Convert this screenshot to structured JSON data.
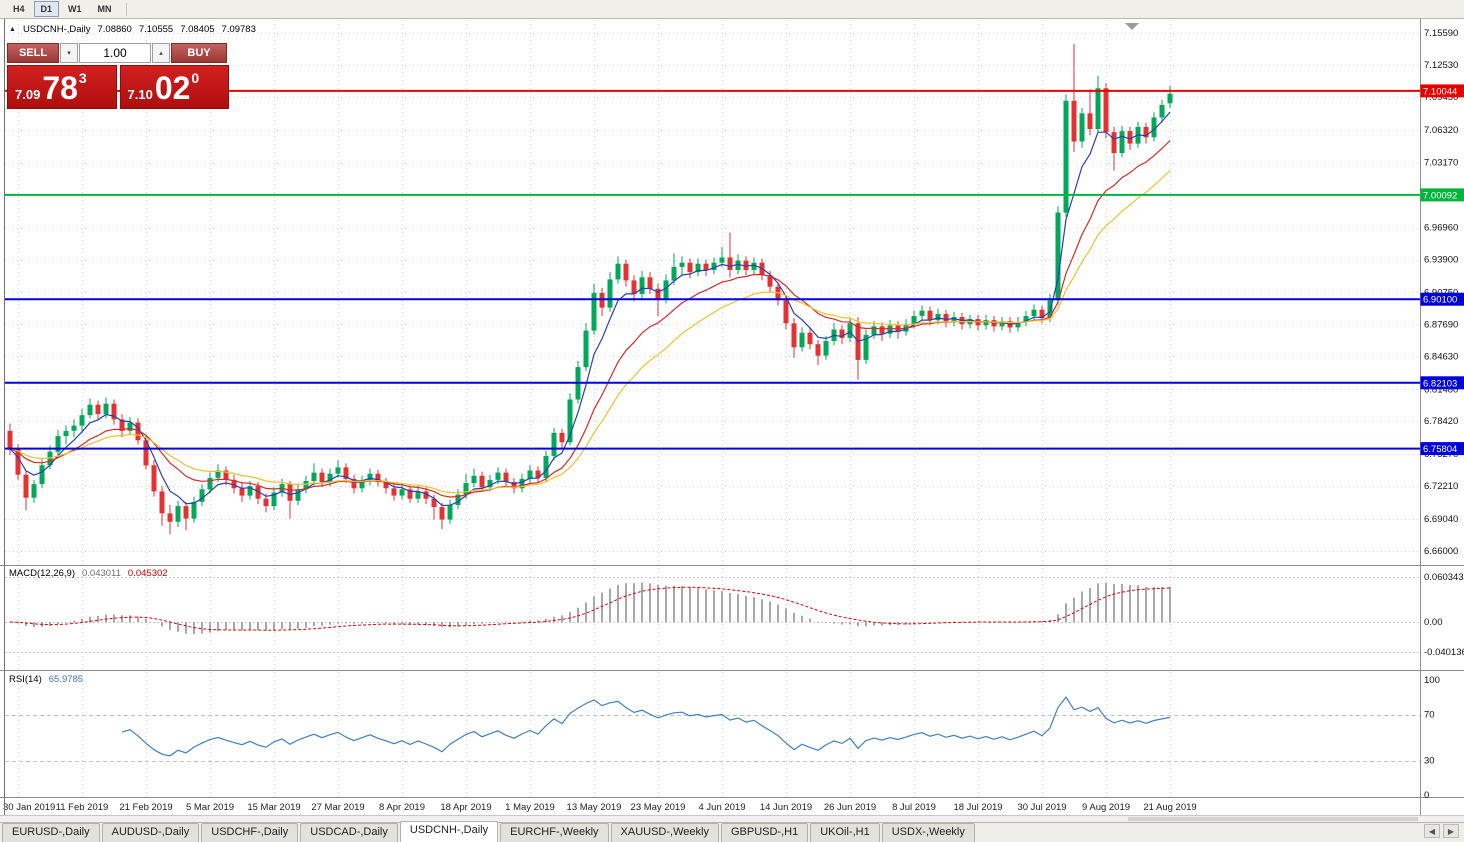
{
  "toolbar": {
    "timeframes": [
      {
        "label": "H4",
        "active": false
      },
      {
        "label": "D1",
        "active": true
      },
      {
        "label": "W1",
        "active": false
      },
      {
        "label": "MN",
        "active": false
      }
    ]
  },
  "chart": {
    "title_symbol": "USDCNH-,Daily",
    "ohlc": {
      "open": "7.08860",
      "high": "7.10555",
      "low": "7.08405",
      "close": "7.09783"
    },
    "trade_panel": {
      "sell_label": "SELL",
      "buy_label": "BUY",
      "volume": "1.00",
      "sell_price_prefix": "7.09",
      "sell_price_big": "78",
      "sell_price_sup": "3",
      "buy_price_prefix": "7.10",
      "buy_price_big": "02",
      "buy_price_sup": "0"
    },
    "price_axis": {
      "ticks": [
        "7.15590",
        "7.12530",
        "7.09450",
        "7.06320",
        "7.03170",
        "7.00090",
        "6.96960",
        "6.93900",
        "6.90750",
        "6.87690",
        "6.84630",
        "6.81480",
        "6.78420",
        "6.75270",
        "6.72210",
        "6.69040",
        "6.66000"
      ]
    },
    "levels": [
      {
        "label": "7.10044",
        "value": 7.10044,
        "color": "#E80000"
      },
      {
        "label": "7.00092",
        "value": 7.00092,
        "color": "#00B43C"
      },
      {
        "label": "6.90100",
        "value": 6.901,
        "color": "#0000DC"
      },
      {
        "label": "6.82103",
        "value": 6.82103,
        "color": "#0000DC"
      },
      {
        "label": "6.75804",
        "value": 6.75804,
        "color": "#0000DC"
      }
    ],
    "date_axis": [
      "30 Jan 2019",
      "11 Feb 2019",
      "21 Feb 2019",
      "5 Mar 2019",
      "15 Mar 2019",
      "27 Mar 2019",
      "8 Apr 2019",
      "18 Apr 2019",
      "1 May 2019",
      "13 May 2019",
      "23 May 2019",
      "4 Jun 2019",
      "14 Jun 2019",
      "26 Jun 2019",
      "8 Jul 2019",
      "18 Jul 2019",
      "30 Jul 2019",
      "9 Aug 2019",
      "21 Aug 2019"
    ],
    "colors": {
      "up": "#00A859",
      "down": "#E53131",
      "grid": "#D4D4D4",
      "macd_hist": "#A8A8A8",
      "macd_signal": "#E00000",
      "rsi_line": "#4080C0"
    }
  },
  "chart_data": {
    "type": "candlestick",
    "symbol": "USDCNH",
    "period": "Daily",
    "y_range": [
      6.66,
      7.1559
    ],
    "overlays": [
      {
        "name": "ma-fast-line",
        "period": 5,
        "color": "#2840B4"
      },
      {
        "name": "ma-mid-line",
        "period": 13,
        "color": "#D22B2B"
      },
      {
        "name": "ma-slow-line",
        "period": 21,
        "color": "#F0C030"
      }
    ],
    "candles": [
      [
        6.775,
        6.782,
        6.752,
        6.758
      ],
      [
        6.758,
        6.762,
        6.728,
        6.733
      ],
      [
        6.733,
        6.737,
        6.699,
        6.711
      ],
      [
        6.711,
        6.728,
        6.706,
        6.724
      ],
      [
        6.724,
        6.748,
        6.72,
        6.742
      ],
      [
        6.742,
        6.761,
        6.738,
        6.755
      ],
      [
        6.755,
        6.776,
        6.751,
        6.77
      ],
      [
        6.77,
        6.78,
        6.762,
        6.775
      ],
      [
        6.775,
        6.786,
        6.769,
        6.78
      ],
      [
        6.78,
        6.796,
        6.775,
        6.79
      ],
      [
        6.79,
        6.806,
        6.787,
        6.8
      ],
      [
        6.8,
        6.804,
        6.786,
        6.791
      ],
      [
        6.791,
        6.807,
        6.787,
        6.801
      ],
      [
        6.801,
        6.805,
        6.781,
        6.786
      ],
      [
        6.786,
        6.791,
        6.769,
        6.775
      ],
      [
        6.775,
        6.788,
        6.771,
        6.783
      ],
      [
        6.783,
        6.787,
        6.762,
        6.766
      ],
      [
        6.766,
        6.771,
        6.738,
        6.742
      ],
      [
        6.742,
        6.747,
        6.712,
        6.717
      ],
      [
        6.717,
        6.722,
        6.684,
        6.696
      ],
      [
        6.696,
        6.704,
        6.676,
        6.688
      ],
      [
        6.688,
        6.708,
        6.683,
        6.703
      ],
      [
        6.703,
        6.707,
        6.68,
        6.691
      ],
      [
        6.691,
        6.712,
        6.687,
        6.707
      ],
      [
        6.707,
        6.724,
        6.703,
        6.719
      ],
      [
        6.719,
        6.735,
        6.715,
        6.73
      ],
      [
        6.73,
        6.743,
        6.726,
        6.737
      ],
      [
        6.737,
        6.741,
        6.723,
        6.728
      ],
      [
        6.728,
        6.733,
        6.715,
        6.72
      ],
      [
        6.72,
        6.726,
        6.707,
        6.713
      ],
      [
        6.713,
        6.727,
        6.709,
        6.722
      ],
      [
        6.722,
        6.726,
        6.705,
        6.71
      ],
      [
        6.71,
        6.715,
        6.697,
        6.703
      ],
      [
        6.703,
        6.721,
        6.699,
        6.716
      ],
      [
        6.716,
        6.729,
        6.712,
        6.724
      ],
      [
        6.724,
        6.727,
        6.691,
        6.708
      ],
      [
        6.708,
        6.724,
        6.704,
        6.719
      ],
      [
        6.719,
        6.732,
        6.715,
        6.727
      ],
      [
        6.727,
        6.744,
        6.723,
        6.735
      ],
      [
        6.735,
        6.739,
        6.721,
        6.726
      ],
      [
        6.726,
        6.739,
        6.722,
        6.734
      ],
      [
        6.734,
        6.747,
        6.73,
        6.74
      ],
      [
        6.74,
        6.744,
        6.725,
        6.729
      ],
      [
        6.729,
        6.733,
        6.715,
        6.72
      ],
      [
        6.72,
        6.732,
        6.716,
        6.727
      ],
      [
        6.727,
        6.739,
        6.723,
        6.734
      ],
      [
        6.734,
        6.738,
        6.722,
        6.726
      ],
      [
        6.726,
        6.73,
        6.715,
        6.72
      ],
      [
        6.72,
        6.724,
        6.708,
        6.713
      ],
      [
        6.713,
        6.725,
        6.709,
        6.719
      ],
      [
        6.719,
        6.723,
        6.706,
        6.71
      ],
      [
        6.71,
        6.722,
        6.706,
        6.717
      ],
      [
        6.717,
        6.721,
        6.705,
        6.71
      ],
      [
        6.71,
        6.714,
        6.69,
        6.702
      ],
      [
        6.702,
        6.706,
        6.681,
        6.69
      ],
      [
        6.69,
        6.709,
        6.686,
        6.704
      ],
      [
        6.704,
        6.719,
        6.7,
        6.714
      ],
      [
        6.714,
        6.734,
        6.71,
        6.725
      ],
      [
        6.725,
        6.739,
        6.721,
        6.732
      ],
      [
        6.732,
        6.736,
        6.717,
        6.721
      ],
      [
        6.721,
        6.733,
        6.717,
        6.728
      ],
      [
        6.728,
        6.74,
        6.724,
        6.735
      ],
      [
        6.735,
        6.739,
        6.722,
        6.726
      ],
      [
        6.726,
        6.73,
        6.715,
        6.72
      ],
      [
        6.72,
        6.734,
        6.716,
        6.729
      ],
      [
        6.729,
        6.742,
        6.725,
        6.737
      ],
      [
        6.737,
        6.741,
        6.725,
        6.73
      ],
      [
        6.73,
        6.756,
        6.726,
        6.751
      ],
      [
        6.751,
        6.778,
        6.747,
        6.773
      ],
      [
        6.773,
        6.777,
        6.759,
        6.764
      ],
      [
        6.764,
        6.811,
        6.761,
        6.805
      ],
      [
        6.805,
        6.842,
        6.801,
        6.836
      ],
      [
        6.836,
        6.878,
        6.832,
        6.871
      ],
      [
        6.871,
        6.916,
        6.867,
        6.907
      ],
      [
        6.907,
        6.912,
        6.885,
        6.893
      ],
      [
        6.893,
        6.927,
        6.889,
        6.92
      ],
      [
        6.92,
        6.942,
        6.916,
        6.935
      ],
      [
        6.935,
        6.939,
        6.913,
        6.919
      ],
      [
        6.919,
        6.924,
        6.899,
        6.906
      ],
      [
        6.906,
        6.928,
        6.902,
        6.922
      ],
      [
        6.922,
        6.927,
        6.906,
        6.911
      ],
      [
        6.911,
        6.916,
        6.885,
        6.901
      ],
      [
        6.901,
        6.925,
        6.897,
        6.919
      ],
      [
        6.919,
        6.945,
        6.915,
        6.932
      ],
      [
        6.932,
        6.942,
        6.924,
        6.936
      ],
      [
        6.936,
        6.94,
        6.921,
        6.927
      ],
      [
        6.927,
        6.94,
        6.923,
        6.935
      ],
      [
        6.935,
        6.939,
        6.923,
        6.929
      ],
      [
        6.929,
        6.941,
        6.925,
        6.936
      ],
      [
        6.936,
        6.951,
        6.932,
        6.941
      ],
      [
        6.941,
        6.965,
        6.922,
        6.929
      ],
      [
        6.929,
        6.944,
        6.925,
        6.938
      ],
      [
        6.938,
        6.942,
        6.924,
        6.929
      ],
      [
        6.929,
        6.941,
        6.925,
        6.936
      ],
      [
        6.936,
        6.94,
        6.919,
        6.924
      ],
      [
        6.924,
        6.928,
        6.908,
        6.913
      ],
      [
        6.913,
        6.917,
        6.895,
        6.9
      ],
      [
        6.9,
        6.904,
        6.872,
        6.878
      ],
      [
        6.878,
        6.883,
        6.845,
        6.855
      ],
      [
        6.855,
        6.874,
        6.851,
        6.869
      ],
      [
        6.869,
        6.873,
        6.853,
        6.858
      ],
      [
        6.858,
        6.862,
        6.838,
        6.847
      ],
      [
        6.847,
        6.866,
        6.843,
        6.861
      ],
      [
        6.861,
        6.878,
        6.857,
        6.872
      ],
      [
        6.872,
        6.876,
        6.858,
        6.864
      ],
      [
        6.864,
        6.883,
        6.86,
        6.878
      ],
      [
        6.878,
        6.884,
        6.824,
        6.843
      ],
      [
        6.843,
        6.872,
        6.839,
        6.867
      ],
      [
        6.867,
        6.88,
        6.863,
        6.875
      ],
      [
        6.875,
        6.879,
        6.861,
        6.868
      ],
      [
        6.868,
        6.881,
        6.864,
        6.876
      ],
      [
        6.876,
        6.88,
        6.863,
        6.87
      ],
      [
        6.87,
        6.882,
        6.866,
        6.877
      ],
      [
        6.877,
        6.89,
        6.873,
        6.885
      ],
      [
        6.885,
        6.895,
        6.881,
        6.89
      ],
      [
        6.89,
        6.894,
        6.876,
        6.881
      ],
      [
        6.881,
        6.892,
        6.877,
        6.887
      ],
      [
        6.887,
        6.891,
        6.874,
        6.879
      ],
      [
        6.879,
        6.889,
        6.875,
        6.884
      ],
      [
        6.884,
        6.888,
        6.872,
        6.877
      ],
      [
        6.877,
        6.886,
        6.873,
        6.882
      ],
      [
        6.882,
        6.886,
        6.871,
        6.876
      ],
      [
        6.876,
        6.886,
        6.872,
        6.881
      ],
      [
        6.881,
        6.885,
        6.87,
        6.875
      ],
      [
        6.875,
        6.884,
        6.871,
        6.88
      ],
      [
        6.88,
        6.884,
        6.869,
        6.874
      ],
      [
        6.874,
        6.884,
        6.87,
        6.879
      ],
      [
        6.879,
        6.89,
        6.875,
        6.885
      ],
      [
        6.885,
        6.896,
        6.881,
        6.891
      ],
      [
        6.891,
        6.895,
        6.878,
        6.883
      ],
      [
        6.883,
        6.906,
        6.879,
        6.9
      ],
      [
        6.9,
        6.99,
        6.896,
        6.984
      ],
      [
        6.984,
        7.097,
        6.98,
        7.091
      ],
      [
        7.091,
        7.1455,
        7.042,
        7.052
      ],
      [
        7.052,
        7.084,
        7.046,
        7.079
      ],
      [
        7.079,
        7.102,
        7.058,
        7.064
      ],
      [
        7.064,
        7.115,
        7.06,
        7.103
      ],
      [
        7.103,
        7.108,
        7.055,
        7.061
      ],
      [
        7.061,
        7.066,
        7.024,
        7.041
      ],
      [
        7.041,
        7.067,
        7.037,
        7.062
      ],
      [
        7.062,
        7.066,
        7.044,
        7.05
      ],
      [
        7.05,
        7.071,
        7.046,
        7.066
      ],
      [
        7.066,
        7.07,
        7.05,
        7.056
      ],
      [
        7.056,
        7.08,
        7.052,
        7.075
      ],
      [
        7.075,
        7.092,
        7.07,
        7.087
      ],
      [
        7.0886,
        7.10555,
        7.08405,
        7.09783
      ]
    ]
  },
  "macd": {
    "label": "MACD(12,26,9)",
    "main_value": "0.043011",
    "signal_value": "0.045302",
    "params": {
      "fast": 12,
      "slow": 26,
      "signal": 9
    },
    "axis": [
      {
        "label": "0.060343",
        "value": 0.060343
      },
      {
        "label": "0.00",
        "value": 0
      },
      {
        "label": "-0.040136",
        "value": -0.040136
      }
    ]
  },
  "rsi": {
    "label": "RSI(14)",
    "value": "65.9785",
    "period": 14,
    "levels": [
      70,
      30
    ],
    "axis": [
      {
        "label": "100",
        "value": 100
      },
      {
        "label": "70",
        "value": 70
      },
      {
        "label": "30",
        "value": 30
      },
      {
        "label": "0",
        "value": 0
      }
    ]
  },
  "tabs": {
    "items": [
      {
        "label": "EURUSD-,Daily",
        "active": false
      },
      {
        "label": "AUDUSD-,Daily",
        "active": false
      },
      {
        "label": "USDCHF-,Daily",
        "active": false
      },
      {
        "label": "USDCAD-,Daily",
        "active": false
      },
      {
        "label": "USDCNH-,Daily",
        "active": true
      },
      {
        "label": "EURCHF-,Weekly",
        "active": false
      },
      {
        "label": "XAUUSD-,Weekly",
        "active": false
      },
      {
        "label": "GBPUSD-,H1",
        "active": false
      },
      {
        "label": "UKOil-,H1",
        "active": false
      },
      {
        "label": "USDX-,Weekly",
        "active": false
      }
    ]
  }
}
